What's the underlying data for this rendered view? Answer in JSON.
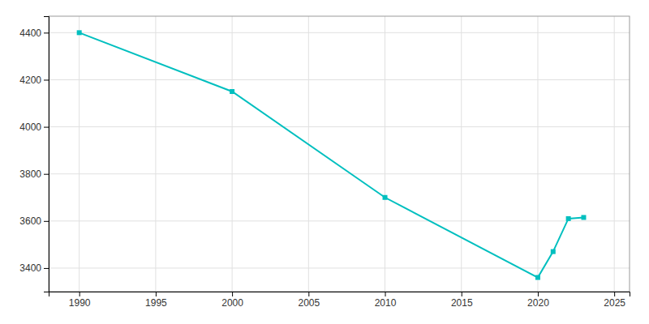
{
  "chart_data": {
    "type": "line",
    "x": [
      1990,
      2000,
      2010,
      2020,
      2021,
      2022,
      2023
    ],
    "values": [
      4400,
      4150,
      3700,
      3360,
      3470,
      3610,
      3615
    ],
    "color": "#00BFBF",
    "marker": "square",
    "xlim": [
      1988,
      2026
    ],
    "ylim": [
      3300,
      4470
    ],
    "xticks": [
      1990,
      1995,
      2000,
      2005,
      2010,
      2015,
      2020,
      2025
    ],
    "yticks": [
      3400,
      3600,
      3800,
      4000,
      4200,
      4400
    ],
    "grid": true
  }
}
